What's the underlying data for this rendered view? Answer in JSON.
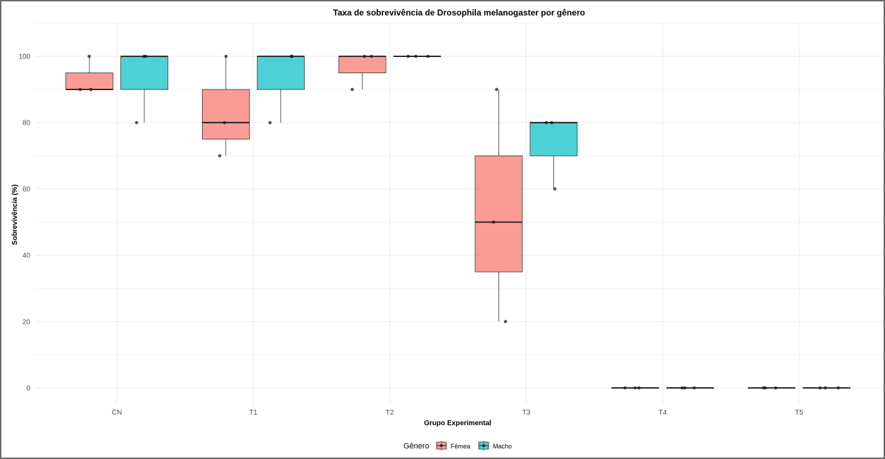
{
  "chart_data": {
    "type": "box",
    "title": "Taxa de sobrevivência de Drosophila melanogaster por gênero",
    "xlabel": "Grupo Experimental",
    "ylabel": "Sobrevivência (%)",
    "ylim": [
      -5,
      110
    ],
    "yticks": [
      0,
      20,
      40,
      60,
      80,
      100
    ],
    "categories": [
      "CN",
      "T1",
      "T2",
      "T3",
      "T4",
      "T5"
    ],
    "grid": true,
    "legend": {
      "title": "Gênero",
      "position": "bottom",
      "entries": [
        {
          "name": "Fêmea",
          "color": "#F8766D"
        },
        {
          "name": "Macho",
          "color": "#00BFC4"
        }
      ]
    },
    "series": [
      {
        "name": "Fêmea",
        "color": "#F8766D",
        "boxes": [
          {
            "category": "CN",
            "min": 90,
            "q1": 90,
            "median": 90,
            "q3": 95,
            "max": 100,
            "points": [
              100,
              90,
              90
            ]
          },
          {
            "category": "T1",
            "min": 70,
            "q1": 75,
            "median": 80,
            "q3": 90,
            "max": 100,
            "points": [
              70,
              80,
              100
            ]
          },
          {
            "category": "T2",
            "min": 90,
            "q1": 95,
            "median": 100,
            "q3": 100,
            "max": 100,
            "points": [
              90,
              100,
              100
            ]
          },
          {
            "category": "T3",
            "min": 20,
            "q1": 35,
            "median": 50,
            "q3": 70,
            "max": 90,
            "points": [
              90,
              50,
              20
            ]
          },
          {
            "category": "T4",
            "min": 0,
            "q1": 0,
            "median": 0,
            "q3": 0,
            "max": 0,
            "points": [
              0,
              0,
              0
            ]
          },
          {
            "category": "T5",
            "min": 0,
            "q1": 0,
            "median": 0,
            "q3": 0,
            "max": 0,
            "points": [
              0,
              0,
              0
            ]
          }
        ]
      },
      {
        "name": "Macho",
        "color": "#00BFC4",
        "boxes": [
          {
            "category": "CN",
            "min": 80,
            "q1": 90,
            "median": 100,
            "q3": 100,
            "max": 100,
            "points": [
              100,
              100,
              80
            ]
          },
          {
            "category": "T1",
            "min": 80,
            "q1": 90,
            "median": 100,
            "q3": 100,
            "max": 100,
            "points": [
              80,
              100,
              100
            ]
          },
          {
            "category": "T2",
            "min": 100,
            "q1": 100,
            "median": 100,
            "q3": 100,
            "max": 100,
            "points": [
              100,
              100,
              100
            ]
          },
          {
            "category": "T3",
            "min": 60,
            "q1": 70,
            "median": 80,
            "q3": 80,
            "max": 80,
            "points": [
              80,
              80,
              60
            ]
          },
          {
            "category": "T4",
            "min": 0,
            "q1": 0,
            "median": 0,
            "q3": 0,
            "max": 0,
            "points": [
              0,
              0,
              0
            ]
          },
          {
            "category": "T5",
            "min": 0,
            "q1": 0,
            "median": 0,
            "q3": 0,
            "max": 0,
            "points": [
              0,
              0,
              0
            ]
          }
        ]
      }
    ]
  }
}
